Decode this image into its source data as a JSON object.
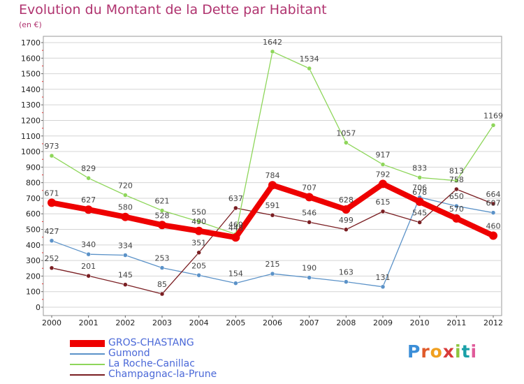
{
  "header": {
    "title": "Evolution du Montant de la Dette par Habitant",
    "unit": "(en €)"
  },
  "colors": {
    "title": "#b0336f",
    "legend_text": "#4a68d8",
    "plot_border": "#9a9a9a",
    "grid": "#d4d4d4"
  },
  "logo": {
    "letters": [
      "P",
      "r",
      "o",
      "x",
      "i",
      "t",
      "i"
    ],
    "colors": [
      "#3b8ed8",
      "#e05a2a",
      "#f0a020",
      "#d83a3a",
      "#8ec63f",
      "#1aa0a8",
      "#e05a9a"
    ]
  },
  "chart_data": {
    "type": "line",
    "title": "Evolution du Montant de la Dette par Habitant",
    "ylabel": "(en €)",
    "ylim": [
      0,
      1700
    ],
    "yticks": [
      0,
      100,
      200,
      300,
      400,
      500,
      600,
      700,
      800,
      900,
      1000,
      1100,
      1200,
      1300,
      1400,
      1500,
      1600,
      1700
    ],
    "x": [
      "2000",
      "2001",
      "2002",
      "2003",
      "2004",
      "2005",
      "2006",
      "2007",
      "2008",
      "2009",
      "2010",
      "2011",
      "2012"
    ],
    "grid": "horizontal",
    "legend_position": "bottom-left",
    "series": [
      {
        "name": "GROS-CHASTANG",
        "color": "#ee0000",
        "values": [
          671,
          627,
          580,
          528,
          490,
          448,
          784,
          707,
          628,
          792,
          678,
          570,
          460
        ],
        "labels": [
          "671",
          "627",
          "580",
          "528",
          "490",
          "448",
          "784",
          "707",
          "628",
          "792",
          "678",
          "570",
          "460"
        ]
      },
      {
        "name": "Gumond",
        "color": "#5b92c8",
        "values": [
          427,
          340,
          334,
          253,
          205,
          154,
          215,
          190,
          163,
          131,
          706,
          650,
          607
        ],
        "labels": [
          "427",
          "340",
          "334",
          "253",
          "205",
          "154",
          "215",
          "190",
          "163",
          "131",
          "706",
          "650",
          "607"
        ]
      },
      {
        "name": "La Roche-Canillac",
        "color": "#8ed65a",
        "values": [
          973,
          829,
          720,
          621,
          550,
          469,
          1642,
          1534,
          1057,
          917,
          833,
          813,
          1169
        ],
        "labels": [
          "973",
          "829",
          "720",
          "621",
          "550",
          "469",
          "1642",
          "1534",
          "1057",
          "917",
          "833",
          "813",
          "1169"
        ]
      },
      {
        "name": "Champagnac-la-Prune",
        "color": "#7a1e22",
        "values": [
          252,
          201,
          145,
          85,
          351,
          637,
          591,
          546,
          499,
          615,
          545,
          758,
          664
        ],
        "labels": [
          "252",
          "201",
          "145",
          "85",
          "351",
          "637",
          "591",
          "546",
          "499",
          "615",
          "545",
          "758",
          "664"
        ]
      }
    ]
  }
}
